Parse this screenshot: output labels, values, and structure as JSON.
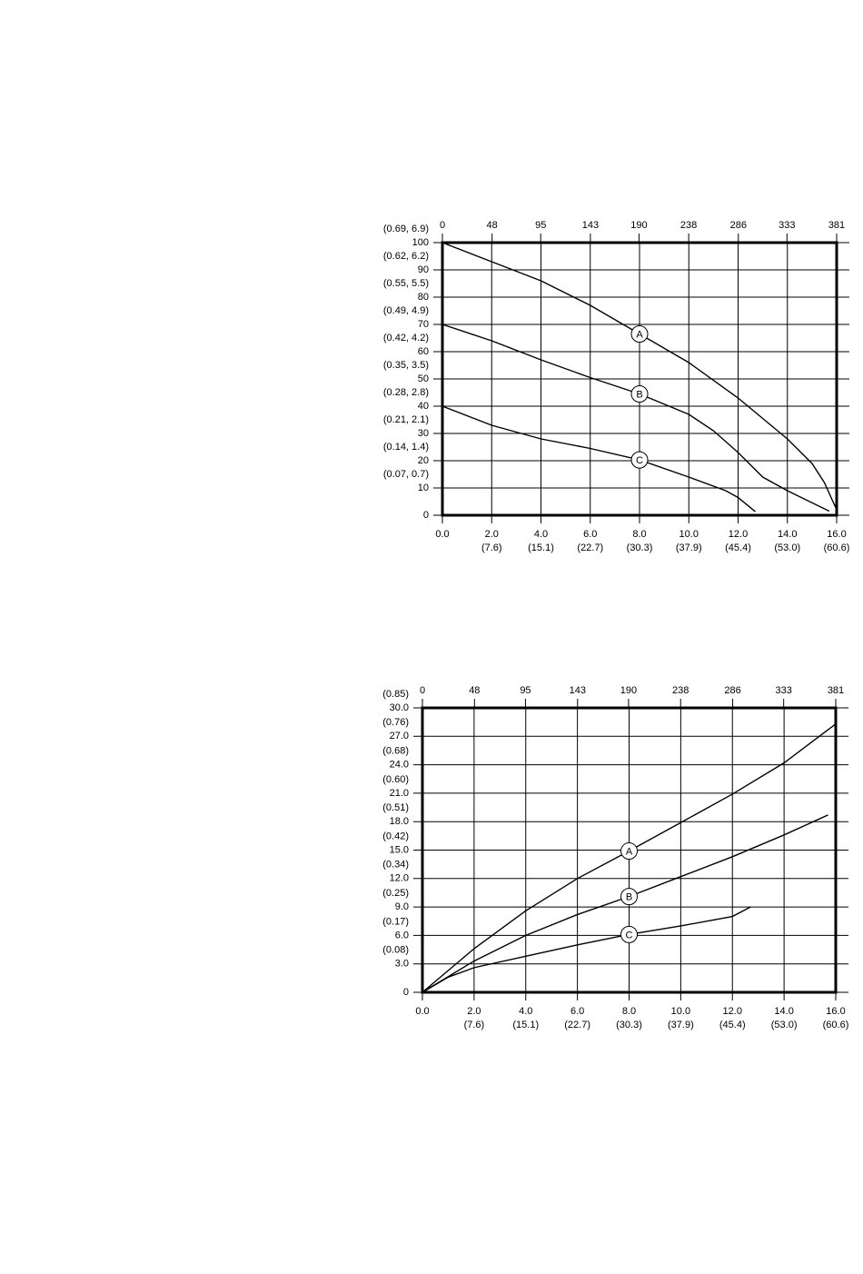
{
  "chart_data": [
    {
      "type": "line",
      "xlim": [
        0,
        16
      ],
      "xticks": [
        {
          "value": 0,
          "label": "0.0"
        },
        {
          "value": 2,
          "label": "2.0"
        },
        {
          "value": 4,
          "label": "4.0"
        },
        {
          "value": 6,
          "label": "6.0"
        },
        {
          "value": 8,
          "label": "8.0"
        },
        {
          "value": 10,
          "label": "10.0"
        },
        {
          "value": 12,
          "label": "12.0"
        },
        {
          "value": 14,
          "label": "14.0"
        },
        {
          "value": 16,
          "label": "16.0"
        }
      ],
      "xtick_sublabels": [
        null,
        "(7.6)",
        "(15.1)",
        "(22.7)",
        "(30.3)",
        "(37.9)",
        "(45.4)",
        "(53.0)",
        "(60.6)"
      ],
      "x2lim": [
        0,
        381
      ],
      "x2ticks": [
        0,
        48,
        95,
        143,
        190,
        238,
        286,
        333,
        381
      ],
      "ylim": [
        0,
        100
      ],
      "yticks": [
        0,
        10,
        20,
        30,
        40,
        50,
        60,
        70,
        80,
        90,
        100
      ],
      "ytick_sublabels": [
        null,
        "(0.07, 0.7)",
        "(0.14, 1.4)",
        "(0.21, 2.1)",
        "(0.28, 2.8)",
        "(0.35, 3.5)",
        "(0.42, 4.2)",
        "(0.49, 4.9)",
        "(0.55, 5.5)",
        "(0.62, 6.2)",
        "(0.69, 6.9)"
      ],
      "grid": true,
      "series": [
        {
          "name": "A",
          "color": "#000000",
          "x": [
            0,
            2,
            4,
            6,
            8,
            10,
            12,
            14,
            15,
            15.5,
            16
          ],
          "values": [
            100,
            93,
            86,
            77,
            66.5,
            56,
            43,
            28,
            19,
            12,
            2
          ]
        },
        {
          "name": "B",
          "color": "#000000",
          "x": [
            0,
            2,
            4,
            6,
            8,
            10,
            11,
            12,
            13,
            14,
            15.7
          ],
          "values": [
            70,
            64,
            57,
            50.5,
            44.5,
            37,
            31,
            23,
            14,
            9,
            1.5
          ]
        },
        {
          "name": "C",
          "color": "#000000",
          "x": [
            0,
            2,
            4,
            6,
            8,
            10,
            11.5,
            12,
            12.7
          ],
          "values": [
            40,
            33,
            28,
            24.5,
            20.3,
            14,
            9,
            6.5,
            1.3
          ]
        }
      ]
    },
    {
      "type": "line",
      "xlim": [
        0,
        16
      ],
      "xticks": [
        {
          "value": 0,
          "label": "0.0"
        },
        {
          "value": 2,
          "label": "2.0"
        },
        {
          "value": 4,
          "label": "4.0"
        },
        {
          "value": 6,
          "label": "6.0"
        },
        {
          "value": 8,
          "label": "8.0"
        },
        {
          "value": 10,
          "label": "10.0"
        },
        {
          "value": 12,
          "label": "12.0"
        },
        {
          "value": 14,
          "label": "14.0"
        },
        {
          "value": 16,
          "label": "16.0"
        }
      ],
      "xtick_sublabels": [
        null,
        "(7.6)",
        "(15.1)",
        "(22.7)",
        "(30.3)",
        "(37.9)",
        "(45.4)",
        "(53.0)",
        "(60.6)"
      ],
      "x2lim": [
        0,
        381
      ],
      "x2ticks": [
        0,
        48,
        95,
        143,
        190,
        238,
        286,
        333,
        381
      ],
      "ylim": [
        0,
        30
      ],
      "yticks": [
        0,
        {
          "value": 3,
          "label": "3.0"
        },
        {
          "value": 6,
          "label": "6.0"
        },
        {
          "value": 9,
          "label": "9.0"
        },
        {
          "value": 12,
          "label": "12.0"
        },
        {
          "value": 15,
          "label": "15.0"
        },
        {
          "value": 18,
          "label": "18.0"
        },
        {
          "value": 21,
          "label": "21.0"
        },
        {
          "value": 24,
          "label": "24.0"
        },
        {
          "value": 27,
          "label": "27.0"
        },
        {
          "value": 30,
          "label": "30.0"
        }
      ],
      "ytick_sublabels": [
        null,
        "(0.08)",
        "(0.17)",
        "(0.25)",
        "(0.34)",
        "(0.42)",
        "(0.51)",
        "(0.60)",
        "(0.68)",
        "(0.76)",
        "(0.85)"
      ],
      "grid": true,
      "series": [
        {
          "name": "A",
          "color": "#000000",
          "x": [
            0,
            2,
            4,
            6,
            8,
            10,
            12,
            14,
            16
          ],
          "values": [
            0,
            4.6,
            8.6,
            12,
            14.9,
            17.9,
            20.9,
            24.2,
            28.3
          ]
        },
        {
          "name": "B",
          "color": "#000000",
          "x": [
            0,
            2,
            4,
            6,
            8,
            10,
            12,
            14,
            15.7
          ],
          "values": [
            0,
            3.3,
            6,
            8.2,
            10.1,
            12.2,
            14.3,
            16.6,
            18.7
          ]
        },
        {
          "name": "C",
          "color": "#000000",
          "x": [
            0,
            1,
            2,
            4,
            6,
            8,
            10,
            12,
            12.7
          ],
          "values": [
            0,
            1.6,
            2.6,
            3.8,
            5,
            6.1,
            7,
            8,
            9
          ]
        }
      ]
    }
  ]
}
